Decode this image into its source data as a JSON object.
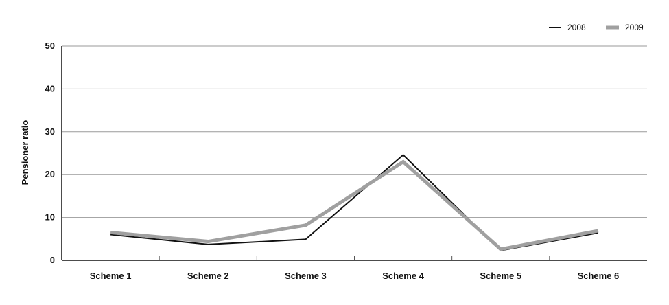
{
  "chart_data": {
    "type": "line",
    "categories": [
      "Scheme 1",
      "Scheme 2",
      "Scheme 3",
      "Scheme 4",
      "Scheme 5",
      "Scheme 6"
    ],
    "series": [
      {
        "name": "2008",
        "values": [
          6.0,
          3.7,
          4.9,
          24.6,
          2.3,
          6.4
        ],
        "color": "#111111"
      },
      {
        "name": "2009",
        "values": [
          6.5,
          4.4,
          8.2,
          23.0,
          2.6,
          6.9
        ],
        "color": "#a0a0a0"
      }
    ],
    "title": "",
    "xlabel": "",
    "ylabel": "Pensioner ratio",
    "ylim": [
      0,
      50
    ],
    "yticks": [
      0,
      10,
      20,
      30,
      40,
      50
    ],
    "grid": true,
    "legend": "top-right"
  }
}
